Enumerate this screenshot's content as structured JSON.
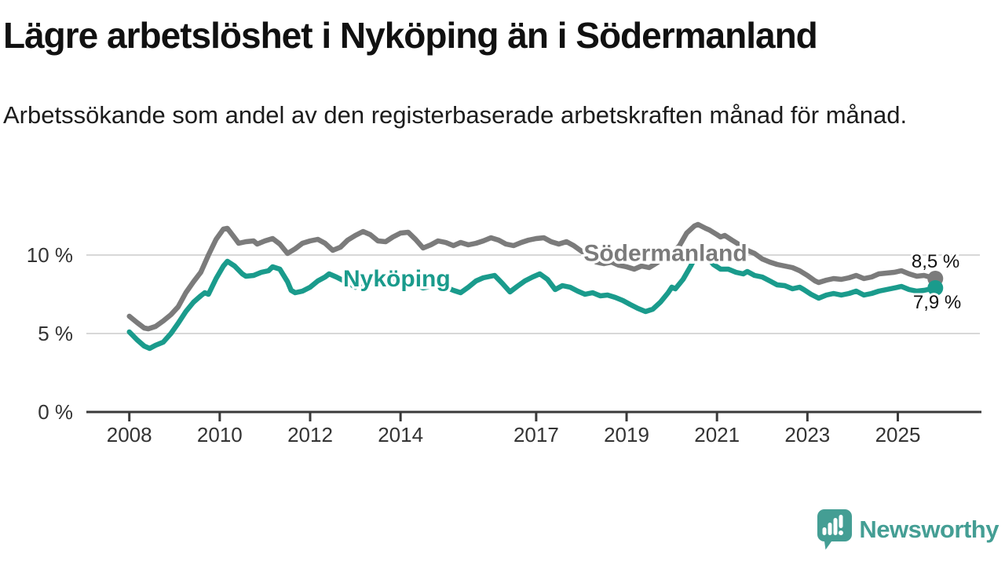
{
  "header": {
    "title": "Lägre arbetslöshet i Nyköping än i Södermanland",
    "subtitle": "Arbetssökande som andel av den registerbaserade arbetskraften månad för månad."
  },
  "branding": {
    "name": "Newsworthy",
    "logo_color": "#449e94",
    "icon": "bar-chart-speech-bubble-icon"
  },
  "colors": {
    "grid": "#d8d8d8",
    "axis": "#3a3a3a",
    "tick_text": "#333333",
    "end_label_text": "#111111",
    "background": "#ffffff"
  },
  "chart_data": {
    "type": "line",
    "title": "Lägre arbetslöshet i Nyköping än i Södermanland",
    "subtitle": "Arbetssökande som andel av den registerbaserade arbetskraften månad för månad.",
    "unit": "%",
    "grid": "horizontal-only",
    "legend_position": "inline-labels",
    "x_axis": {
      "min": 2007.05,
      "max": 2026.85,
      "ticks": [
        {
          "v": 2008,
          "label": "2008"
        },
        {
          "v": 2010,
          "label": "2010"
        },
        {
          "v": 2012,
          "label": "2012"
        },
        {
          "v": 2014,
          "label": "2014"
        },
        {
          "v": 2017,
          "label": "2017"
        },
        {
          "v": 2019,
          "label": "2019"
        },
        {
          "v": 2021,
          "label": "2021"
        },
        {
          "v": 2023,
          "label": "2023"
        },
        {
          "v": 2025,
          "label": "2025"
        }
      ]
    },
    "y_axis": {
      "min": 0,
      "max": 12.7,
      "ticks": [
        {
          "v": 0,
          "label": "0 %"
        },
        {
          "v": 5,
          "label": "5 %"
        },
        {
          "v": 10,
          "label": "10 %"
        }
      ]
    },
    "series": [
      {
        "name": "Södermanland",
        "color": "#7b7b7b",
        "end_label": "8,5 %",
        "end_label_side": "above",
        "label_anchor": {
          "t": 2018.05,
          "v": 9.62
        },
        "points": [
          [
            2008.0,
            6.1
          ],
          [
            2008.17,
            5.7
          ],
          [
            2008.33,
            5.35
          ],
          [
            2008.42,
            5.3
          ],
          [
            2008.58,
            5.45
          ],
          [
            2008.75,
            5.8
          ],
          [
            2008.92,
            6.2
          ],
          [
            2009.08,
            6.7
          ],
          [
            2009.25,
            7.6
          ],
          [
            2009.42,
            8.3
          ],
          [
            2009.58,
            8.9
          ],
          [
            2009.75,
            10.0
          ],
          [
            2009.92,
            11.0
          ],
          [
            2010.08,
            11.65
          ],
          [
            2010.17,
            11.7
          ],
          [
            2010.33,
            11.1
          ],
          [
            2010.42,
            10.75
          ],
          [
            2010.58,
            10.85
          ],
          [
            2010.75,
            10.9
          ],
          [
            2010.83,
            10.7
          ],
          [
            2011.0,
            10.9
          ],
          [
            2011.17,
            11.05
          ],
          [
            2011.33,
            10.7
          ],
          [
            2011.5,
            10.1
          ],
          [
            2011.67,
            10.4
          ],
          [
            2011.83,
            10.75
          ],
          [
            2012.0,
            10.9
          ],
          [
            2012.17,
            11.0
          ],
          [
            2012.33,
            10.75
          ],
          [
            2012.5,
            10.3
          ],
          [
            2012.67,
            10.5
          ],
          [
            2012.83,
            10.95
          ],
          [
            2013.0,
            11.25
          ],
          [
            2013.17,
            11.5
          ],
          [
            2013.33,
            11.3
          ],
          [
            2013.5,
            10.9
          ],
          [
            2013.67,
            10.85
          ],
          [
            2013.83,
            11.15
          ],
          [
            2014.0,
            11.4
          ],
          [
            2014.17,
            11.45
          ],
          [
            2014.33,
            11.0
          ],
          [
            2014.5,
            10.45
          ],
          [
            2014.67,
            10.65
          ],
          [
            2014.83,
            10.9
          ],
          [
            2015.0,
            10.8
          ],
          [
            2015.17,
            10.6
          ],
          [
            2015.33,
            10.8
          ],
          [
            2015.5,
            10.65
          ],
          [
            2015.67,
            10.75
          ],
          [
            2015.83,
            10.9
          ],
          [
            2016.0,
            11.1
          ],
          [
            2016.17,
            10.95
          ],
          [
            2016.33,
            10.7
          ],
          [
            2016.5,
            10.6
          ],
          [
            2016.67,
            10.8
          ],
          [
            2016.83,
            10.95
          ],
          [
            2017.0,
            11.05
          ],
          [
            2017.17,
            11.1
          ],
          [
            2017.33,
            10.85
          ],
          [
            2017.5,
            10.7
          ],
          [
            2017.67,
            10.85
          ],
          [
            2017.83,
            10.6
          ],
          [
            2018.0,
            10.25
          ],
          [
            2018.17,
            9.9
          ],
          [
            2018.33,
            9.55
          ],
          [
            2018.5,
            9.45
          ],
          [
            2018.67,
            9.55
          ],
          [
            2018.83,
            9.35
          ],
          [
            2019.0,
            9.25
          ],
          [
            2019.17,
            9.1
          ],
          [
            2019.33,
            9.3
          ],
          [
            2019.5,
            9.2
          ],
          [
            2019.67,
            9.5
          ],
          [
            2019.83,
            9.85
          ],
          [
            2020.0,
            10.1
          ],
          [
            2020.17,
            10.6
          ],
          [
            2020.33,
            11.4
          ],
          [
            2020.5,
            11.85
          ],
          [
            2020.58,
            11.95
          ],
          [
            2020.75,
            11.7
          ],
          [
            2020.83,
            11.6
          ],
          [
            2021.0,
            11.3
          ],
          [
            2021.08,
            11.15
          ],
          [
            2021.17,
            11.25
          ],
          [
            2021.33,
            10.95
          ],
          [
            2021.5,
            10.65
          ],
          [
            2021.67,
            10.3
          ],
          [
            2021.83,
            10.1
          ],
          [
            2022.0,
            9.75
          ],
          [
            2022.17,
            9.55
          ],
          [
            2022.33,
            9.4
          ],
          [
            2022.5,
            9.3
          ],
          [
            2022.67,
            9.2
          ],
          [
            2022.83,
            9.0
          ],
          [
            2023.0,
            8.7
          ],
          [
            2023.17,
            8.35
          ],
          [
            2023.25,
            8.25
          ],
          [
            2023.42,
            8.4
          ],
          [
            2023.58,
            8.5
          ],
          [
            2023.75,
            8.45
          ],
          [
            2023.92,
            8.55
          ],
          [
            2024.08,
            8.7
          ],
          [
            2024.25,
            8.5
          ],
          [
            2024.42,
            8.6
          ],
          [
            2024.58,
            8.8
          ],
          [
            2024.75,
            8.85
          ],
          [
            2024.92,
            8.9
          ],
          [
            2025.08,
            9.0
          ],
          [
            2025.25,
            8.8
          ],
          [
            2025.42,
            8.65
          ],
          [
            2025.58,
            8.7
          ],
          [
            2025.83,
            8.5
          ]
        ]
      },
      {
        "name": "Nyköping",
        "color": "#1a9b8c",
        "end_label": "7,9 %",
        "end_label_side": "below",
        "label_anchor": {
          "t": 2012.73,
          "v": 8.0
        },
        "points": [
          [
            2008.0,
            5.1
          ],
          [
            2008.17,
            4.6
          ],
          [
            2008.33,
            4.2
          ],
          [
            2008.45,
            4.05
          ],
          [
            2008.58,
            4.25
          ],
          [
            2008.75,
            4.45
          ],
          [
            2008.92,
            5.0
          ],
          [
            2009.08,
            5.65
          ],
          [
            2009.25,
            6.4
          ],
          [
            2009.42,
            7.0
          ],
          [
            2009.58,
            7.4
          ],
          [
            2009.67,
            7.6
          ],
          [
            2009.75,
            7.5
          ],
          [
            2009.92,
            8.5
          ],
          [
            2010.08,
            9.3
          ],
          [
            2010.17,
            9.6
          ],
          [
            2010.33,
            9.3
          ],
          [
            2010.5,
            8.8
          ],
          [
            2010.58,
            8.65
          ],
          [
            2010.75,
            8.7
          ],
          [
            2010.92,
            8.9
          ],
          [
            2011.08,
            9.0
          ],
          [
            2011.17,
            9.25
          ],
          [
            2011.33,
            9.1
          ],
          [
            2011.5,
            8.3
          ],
          [
            2011.58,
            7.75
          ],
          [
            2011.67,
            7.6
          ],
          [
            2011.83,
            7.7
          ],
          [
            2012.0,
            7.95
          ],
          [
            2012.17,
            8.35
          ],
          [
            2012.33,
            8.6
          ],
          [
            2012.42,
            8.8
          ],
          [
            2012.58,
            8.6
          ],
          [
            2012.75,
            8.35
          ],
          [
            2012.92,
            8.1
          ],
          [
            2013.0,
            7.95
          ],
          [
            2013.08,
            8.2
          ],
          [
            2013.17,
            7.95
          ],
          [
            2013.33,
            8.2
          ],
          [
            2013.5,
            8.5
          ],
          [
            2013.67,
            8.3
          ],
          [
            2013.83,
            8.45
          ],
          [
            2014.0,
            8.55
          ],
          [
            2014.17,
            8.35
          ],
          [
            2014.33,
            8.1
          ],
          [
            2014.5,
            7.9
          ],
          [
            2014.67,
            8.0
          ],
          [
            2014.83,
            8.1
          ],
          [
            2015.0,
            7.95
          ],
          [
            2015.17,
            7.75
          ],
          [
            2015.33,
            7.6
          ],
          [
            2015.5,
            7.95
          ],
          [
            2015.67,
            8.35
          ],
          [
            2015.83,
            8.55
          ],
          [
            2016.08,
            8.7
          ],
          [
            2016.25,
            8.2
          ],
          [
            2016.42,
            7.65
          ],
          [
            2016.58,
            8.0
          ],
          [
            2016.75,
            8.35
          ],
          [
            2016.92,
            8.6
          ],
          [
            2017.08,
            8.8
          ],
          [
            2017.25,
            8.45
          ],
          [
            2017.42,
            7.8
          ],
          [
            2017.58,
            8.05
          ],
          [
            2017.75,
            7.95
          ],
          [
            2017.92,
            7.7
          ],
          [
            2018.08,
            7.5
          ],
          [
            2018.25,
            7.6
          ],
          [
            2018.42,
            7.4
          ],
          [
            2018.58,
            7.45
          ],
          [
            2018.75,
            7.3
          ],
          [
            2018.92,
            7.1
          ],
          [
            2019.08,
            6.85
          ],
          [
            2019.25,
            6.6
          ],
          [
            2019.42,
            6.4
          ],
          [
            2019.58,
            6.55
          ],
          [
            2019.75,
            7.0
          ],
          [
            2019.92,
            7.6
          ],
          [
            2020.0,
            7.95
          ],
          [
            2020.08,
            7.85
          ],
          [
            2020.25,
            8.45
          ],
          [
            2020.42,
            9.3
          ],
          [
            2020.58,
            10.2
          ],
          [
            2020.67,
            10.35
          ],
          [
            2020.83,
            9.7
          ],
          [
            2020.92,
            9.4
          ],
          [
            2021.08,
            9.1
          ],
          [
            2021.25,
            9.1
          ],
          [
            2021.42,
            8.9
          ],
          [
            2021.58,
            8.8
          ],
          [
            2021.67,
            8.95
          ],
          [
            2021.83,
            8.7
          ],
          [
            2022.0,
            8.6
          ],
          [
            2022.17,
            8.35
          ],
          [
            2022.33,
            8.1
          ],
          [
            2022.5,
            8.05
          ],
          [
            2022.67,
            7.85
          ],
          [
            2022.83,
            7.95
          ],
          [
            2022.92,
            7.8
          ],
          [
            2023.08,
            7.5
          ],
          [
            2023.25,
            7.25
          ],
          [
            2023.42,
            7.45
          ],
          [
            2023.58,
            7.55
          ],
          [
            2023.75,
            7.45
          ],
          [
            2023.92,
            7.55
          ],
          [
            2024.08,
            7.7
          ],
          [
            2024.25,
            7.45
          ],
          [
            2024.42,
            7.55
          ],
          [
            2024.58,
            7.7
          ],
          [
            2024.75,
            7.8
          ],
          [
            2024.92,
            7.9
          ],
          [
            2025.08,
            8.0
          ],
          [
            2025.25,
            7.8
          ],
          [
            2025.42,
            7.7
          ],
          [
            2025.58,
            7.75
          ],
          [
            2025.83,
            7.9
          ]
        ]
      }
    ]
  }
}
